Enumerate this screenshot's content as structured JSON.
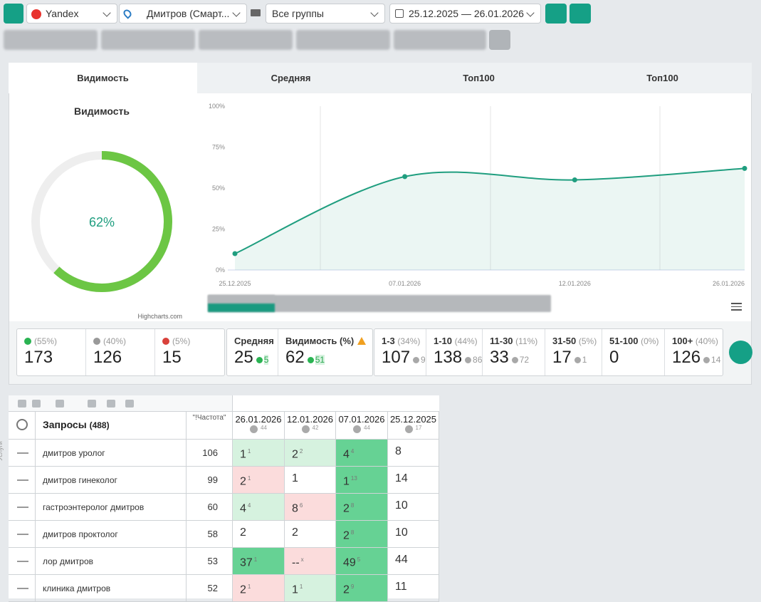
{
  "toolbar": {
    "engine": "Yandex",
    "region": "Дмитров (Смарт...",
    "group": "Все группы",
    "dates": "25.12.2025 — 26.01.2026"
  },
  "tabs": [
    "Видимость",
    "Средняя",
    "Топ100",
    "Топ100"
  ],
  "chart_data": [
    {
      "type": "donut",
      "title": "Видимость",
      "values": [
        62
      ],
      "value_labels": [
        "62%"
      ],
      "ylim": [
        0,
        100
      ],
      "color": "#6cc644",
      "track_color": "#eeeeee"
    },
    {
      "type": "line",
      "categories": [
        "25.12.2025",
        "07.01.2026",
        "12.01.2026",
        "26.01.2026"
      ],
      "values": [
        10,
        57,
        55,
        62
      ],
      "ylim": [
        0,
        100
      ],
      "yticks": [
        {
          "value": 0,
          "label": "0%"
        },
        {
          "value": 25,
          "label": "25%"
        },
        {
          "value": 50,
          "label": "50%"
        },
        {
          "value": 75,
          "label": "75%"
        },
        {
          "value": 100,
          "label": "100%"
        }
      ],
      "color": "#1f9e7f",
      "credit": "Highcharts.com"
    }
  ],
  "positions": [
    {
      "pct": "(55%)",
      "value": 173,
      "dir": "up"
    },
    {
      "pct": "(40%)",
      "value": 126,
      "dir": "flat"
    },
    {
      "pct": "(5%)",
      "value": 15,
      "dir": "down"
    }
  ],
  "summary": [
    {
      "label": "Средняя",
      "value": 25,
      "delta": 5,
      "dir": "up"
    },
    {
      "label": "Видимость (%)",
      "value": 62,
      "delta": 51,
      "dir": "up"
    }
  ],
  "ranges": [
    {
      "label": "1-3",
      "pct": "(34%)",
      "value": 107,
      "delta": 9,
      "dir": "down"
    },
    {
      "label": "1-10",
      "pct": "(44%)",
      "value": 138,
      "delta": 86,
      "dir": "down"
    },
    {
      "label": "11-30",
      "pct": "(11%)",
      "value": 33,
      "delta": 72,
      "dir": "down"
    },
    {
      "label": "31-50",
      "pct": "(5%)",
      "value": 17,
      "delta": 1,
      "dir": "down"
    },
    {
      "label": "51-100",
      "pct": "(0%)",
      "value": 0
    },
    {
      "label": "100+",
      "pct": "(40%)",
      "value": 126,
      "delta": 14,
      "dir": "down"
    }
  ],
  "side_label": "Услуги",
  "table": {
    "title": "Запросы",
    "count": "(488)",
    "freq": "\"!Частота\"",
    "columns": [
      {
        "date": "26.01.2026",
        "count": 44
      },
      {
        "date": "12.01.2026",
        "count": 42
      },
      {
        "date": "07.01.2026",
        "count": 44
      },
      {
        "date": "25.12.2025",
        "count": 17
      }
    ],
    "rows": [
      {
        "query": "дмитров уролог",
        "freq": 106,
        "cells": [
          {
            "pos": 1,
            "delta": 1,
            "state": "up"
          },
          {
            "pos": 2,
            "delta": 2,
            "state": "up"
          },
          {
            "pos": 4,
            "delta": 4,
            "state": "strong"
          },
          {
            "pos": 8,
            "state": "none"
          }
        ]
      },
      {
        "query": "дмитров гинеколог",
        "freq": 99,
        "cells": [
          {
            "pos": 2,
            "delta": 1,
            "state": "down"
          },
          {
            "pos": 1,
            "state": "none"
          },
          {
            "pos": 1,
            "delta": 13,
            "state": "strong"
          },
          {
            "pos": 14,
            "state": "none"
          }
        ]
      },
      {
        "query": "гастроэнтеролог дмитров",
        "freq": 60,
        "cells": [
          {
            "pos": 4,
            "delta": 4,
            "state": "up"
          },
          {
            "pos": 8,
            "delta": 6,
            "state": "down"
          },
          {
            "pos": 2,
            "delta": 8,
            "state": "strong"
          },
          {
            "pos": 10,
            "state": "none"
          }
        ]
      },
      {
        "query": "дмитров проктолог",
        "freq": 58,
        "cells": [
          {
            "pos": 2,
            "state": "none"
          },
          {
            "pos": 2,
            "state": "none"
          },
          {
            "pos": 2,
            "delta": 8,
            "state": "strong"
          },
          {
            "pos": 10,
            "state": "none"
          }
        ]
      },
      {
        "query": "лор дмитров",
        "freq": 53,
        "cells": [
          {
            "pos": 37,
            "delta": 1,
            "state": "strong"
          },
          {
            "pos": "--",
            "delta": "x",
            "state": "down"
          },
          {
            "pos": 49,
            "delta": 5,
            "state": "strong"
          },
          {
            "pos": 44,
            "state": "none"
          }
        ]
      },
      {
        "query": "клиника дмитров",
        "freq": 52,
        "cells": [
          {
            "pos": 2,
            "delta": 1,
            "state": "down"
          },
          {
            "pos": 1,
            "delta": 1,
            "state": "up"
          },
          {
            "pos": 2,
            "delta": 9,
            "state": "strong"
          },
          {
            "pos": 11,
            "state": "none"
          }
        ]
      }
    ]
  }
}
